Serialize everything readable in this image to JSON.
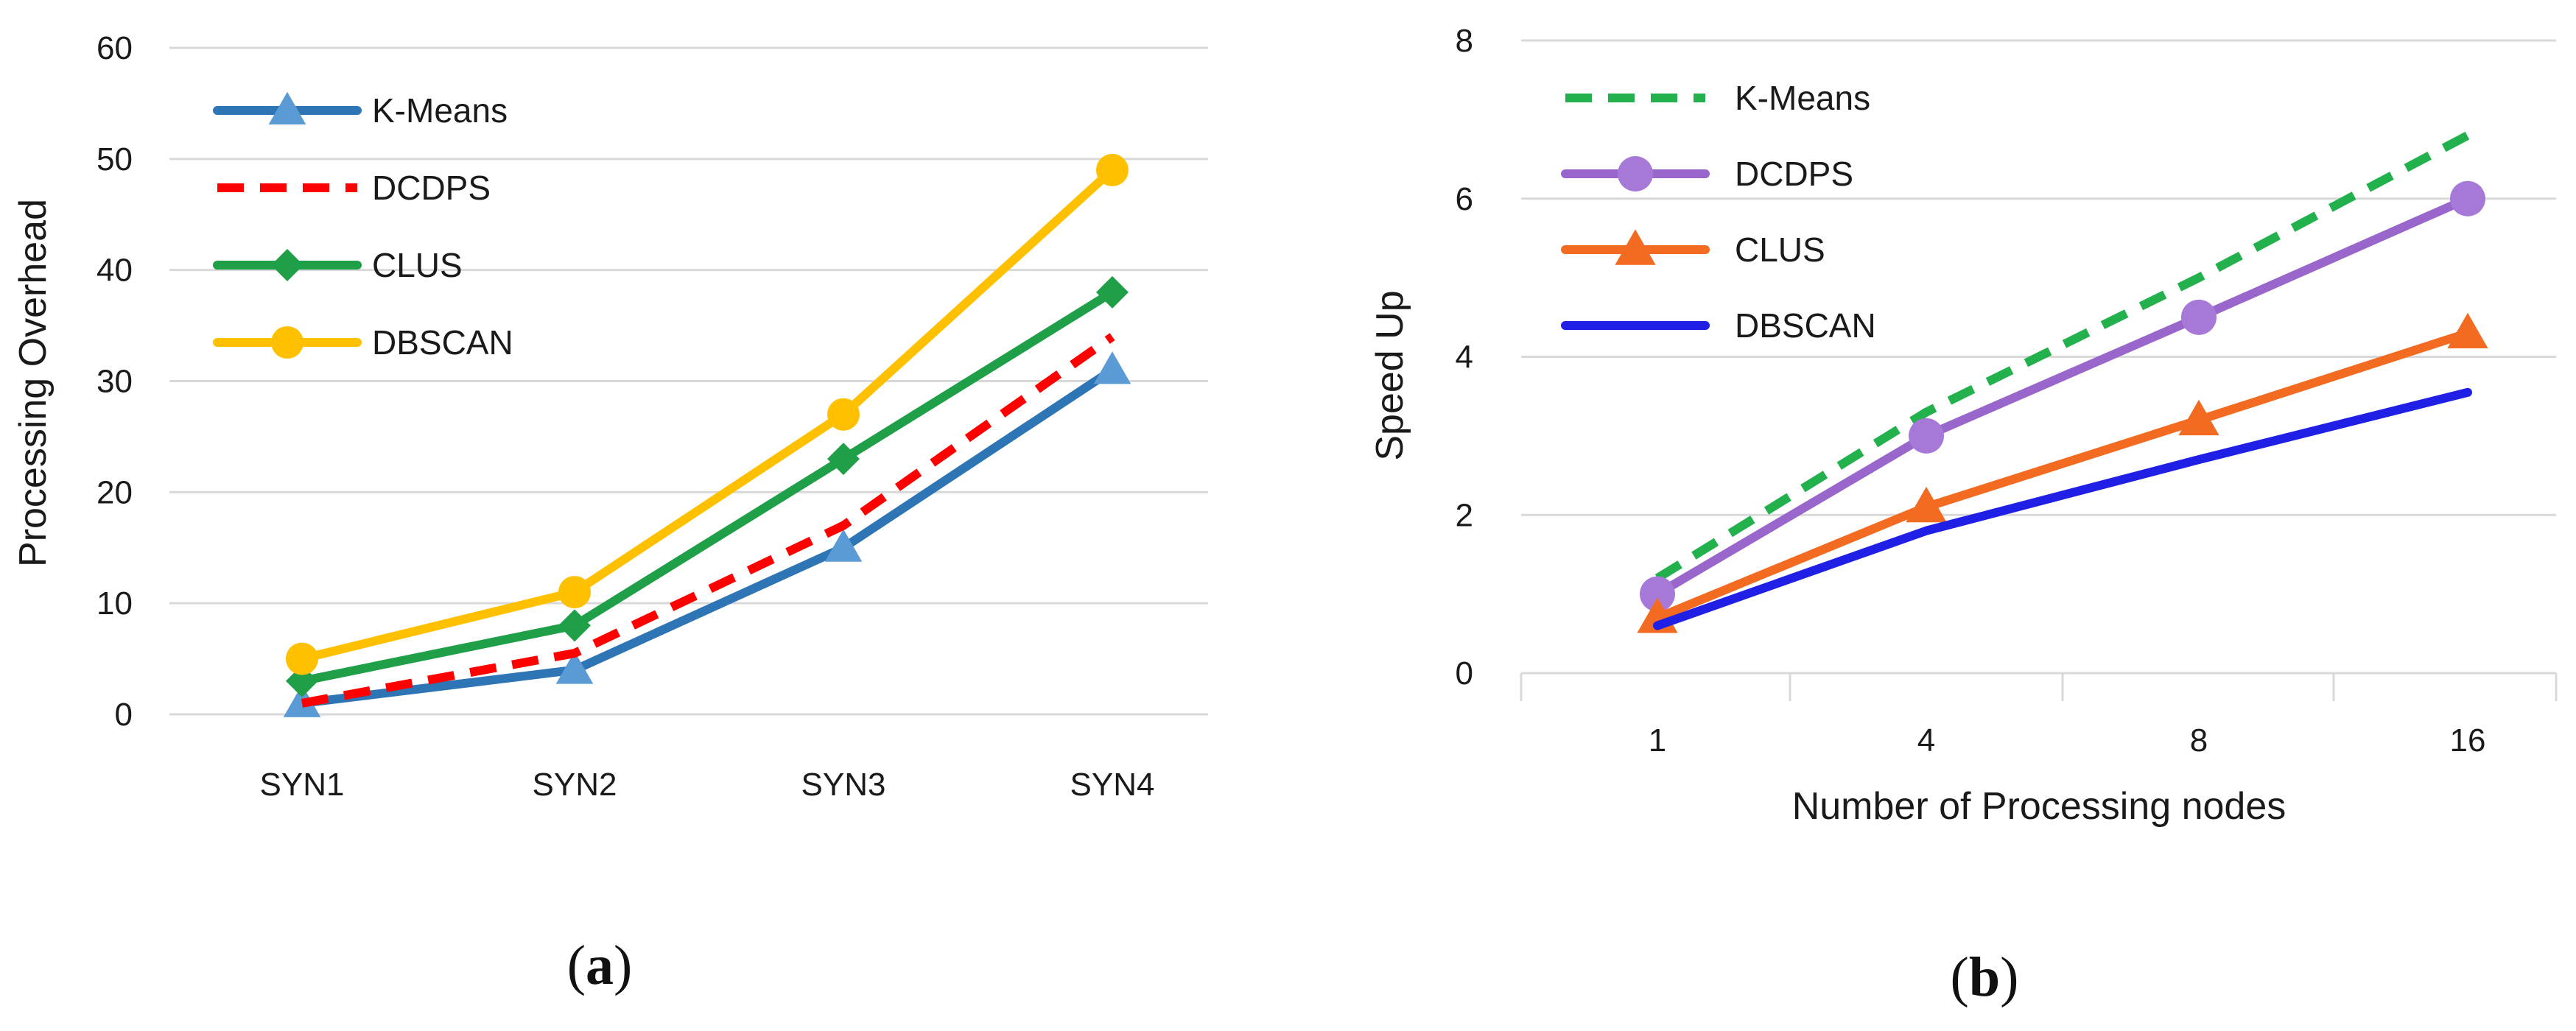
{
  "chart_data": [
    {
      "type": "line",
      "caption": {
        "open": "(",
        "letter": "a",
        "close": ")"
      },
      "categories": [
        "SYN1",
        "SYN2",
        "SYN3",
        "SYN4"
      ],
      "ylabel": "Processing Overhead",
      "xlabel": "",
      "ylim": [
        0,
        60
      ],
      "yticks": [
        0,
        10,
        20,
        30,
        40,
        50,
        60
      ],
      "grid": true,
      "legend_position": "top-left",
      "series": [
        {
          "name": "K-Means",
          "values": [
            1,
            4,
            15,
            31
          ],
          "color": "#2E75B6",
          "marker": "triangle",
          "marker_color": "#5B9BD5",
          "dash": "solid"
        },
        {
          "name": "DCDPS",
          "values": [
            1,
            5.5,
            17,
            34
          ],
          "color": "#FF0000",
          "marker": "none",
          "dash": "dashed"
        },
        {
          "name": "CLUS",
          "values": [
            3,
            8,
            23,
            38
          ],
          "color": "#1FA048",
          "marker": "diamond",
          "dash": "solid"
        },
        {
          "name": "DBSCAN",
          "values": [
            5,
            11,
            27,
            49
          ],
          "color": "#FFC000",
          "marker": "circle",
          "dash": "solid"
        }
      ]
    },
    {
      "type": "line",
      "caption": {
        "open": "(",
        "letter": "b",
        "close": ")"
      },
      "categories": [
        "1",
        "4",
        "8",
        "16"
      ],
      "ylabel": "Speed Up",
      "xlabel": "Number of Processing nodes",
      "ylim": [
        0,
        8
      ],
      "yticks": [
        0,
        2,
        4,
        6,
        8
      ],
      "grid": true,
      "legend_position": "top-left",
      "series": [
        {
          "name": "K-Means",
          "values": [
            1.2,
            3.3,
            5,
            6.8
          ],
          "color": "#22B14C",
          "marker": "none",
          "dash": "dashed"
        },
        {
          "name": "DCDPS",
          "values": [
            1,
            3,
            4.5,
            6
          ],
          "color": "#9966CC",
          "marker": "circle",
          "marker_color": "#A679D9",
          "dash": "solid"
        },
        {
          "name": "CLUS",
          "values": [
            0.7,
            2.1,
            3.2,
            4.3
          ],
          "color": "#F26B21",
          "marker": "triangle",
          "dash": "solid"
        },
        {
          "name": "DBSCAN",
          "values": [
            0.6,
            1.8,
            2.7,
            3.55
          ],
          "color": "#1F1FE6",
          "marker": "none",
          "dash": "solid"
        }
      ]
    }
  ]
}
